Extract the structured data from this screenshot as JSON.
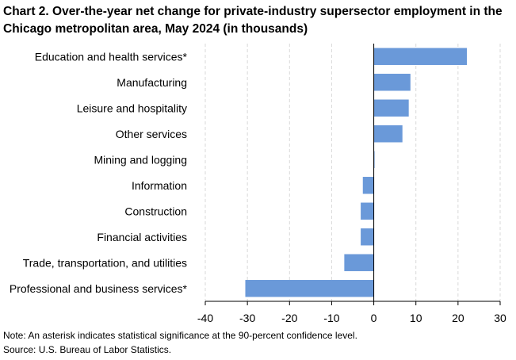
{
  "chart_data": {
    "type": "bar",
    "orientation": "horizontal",
    "title": "Chart 2. Over-the-year net change for private-industry supersector employment in the Chicago metropolitan area, May 2024 (in thousands)",
    "categories": [
      "Education and health services*",
      "Manufacturing",
      "Leisure and hospitality",
      "Other services",
      "Mining and logging",
      "Information",
      "Construction",
      "Financial activities",
      "Trade, transportation, and utilities",
      "Professional and business services*"
    ],
    "values": [
      22.1,
      8.7,
      8.3,
      6.8,
      0.1,
      -2.6,
      -3.1,
      -3.1,
      -7.0,
      -30.5
    ],
    "xlim": [
      -40,
      30
    ],
    "xticks": [
      -40,
      -30,
      -20,
      -10,
      0,
      10,
      20,
      30
    ],
    "xlabel": "",
    "ylabel": "",
    "grid": true,
    "bar_color": "#6a99d9"
  },
  "footer": {
    "note": "Note: An asterisk indicates statistical significance at the 90-percent confidence level.",
    "source": "Source: U.S. Bureau of Labor Statistics."
  }
}
